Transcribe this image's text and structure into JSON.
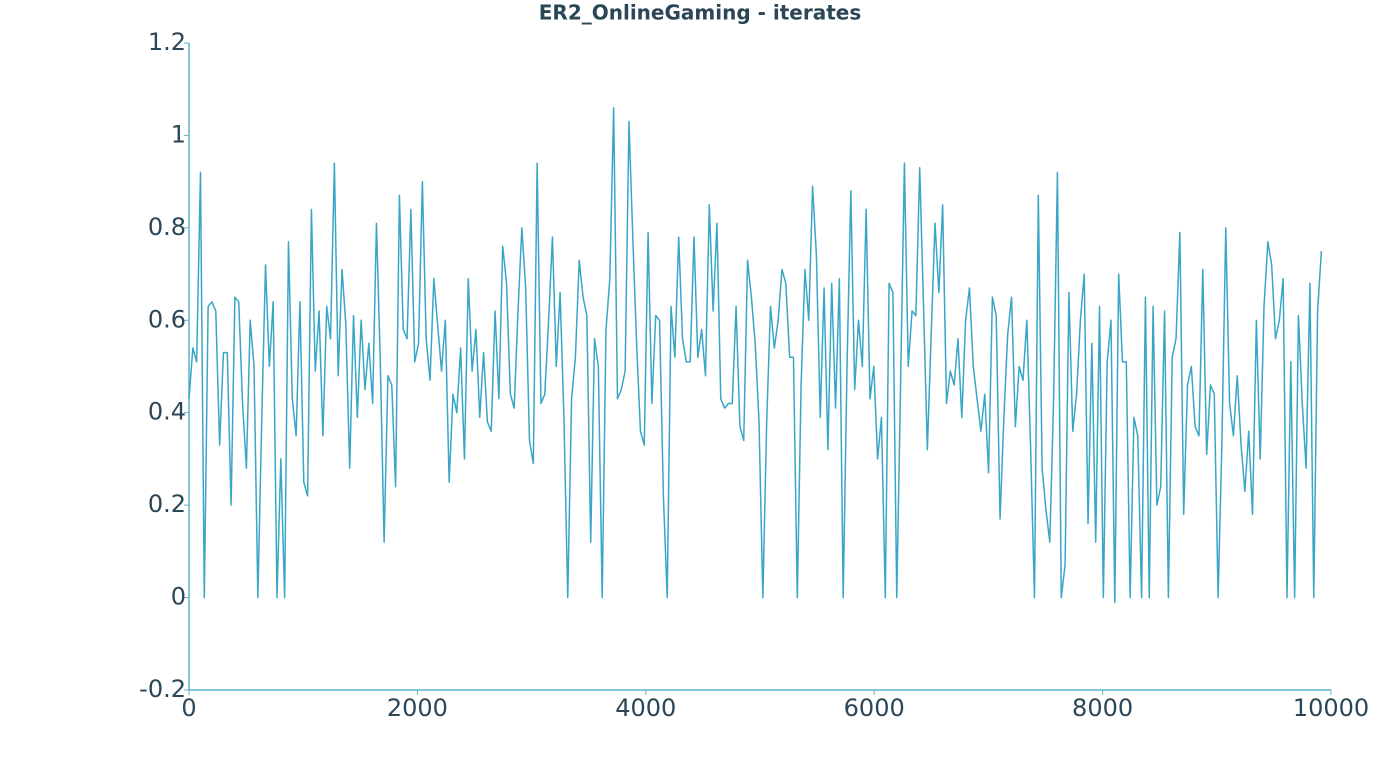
{
  "chart_data": {
    "type": "line",
    "title": "ER2_OnlineGaming - iterates",
    "color": "#3aa6c6",
    "axis_color": "#5ab4cc",
    "grid": false,
    "xlim": [
      0,
      10000
    ],
    "xticks": [
      0,
      2000,
      4000,
      6000,
      8000,
      10000
    ],
    "ylim": [
      -0.2,
      1.2
    ],
    "yticks": [
      -0.2,
      0,
      0.2,
      0.4,
      0.6,
      0.8,
      1,
      1.2
    ],
    "x": [
      0,
      33.5,
      67,
      100.5,
      134,
      167.5,
      201,
      234.5,
      268,
      301.5,
      335,
      368.5,
      402,
      435.5,
      469,
      502.5,
      536,
      569.5,
      603,
      636.5,
      670,
      703.5,
      737,
      770.5,
      804,
      837.5,
      871,
      904.5,
      938,
      971.5,
      1005,
      1038.5,
      1072,
      1105.5,
      1139,
      1172.5,
      1206,
      1239.5,
      1273,
      1306.5,
      1340,
      1373.5,
      1407,
      1440.5,
      1474,
      1507.5,
      1541,
      1574.5,
      1608,
      1641.5,
      1675,
      1708.5,
      1742,
      1775.5,
      1809,
      1842.5,
      1876,
      1909.5,
      1943,
      1976.5,
      2010,
      2043.5,
      2077,
      2110.5,
      2144,
      2177.5,
      2211,
      2244.5,
      2278,
      2311.5,
      2345,
      2378.5,
      2412,
      2445.5,
      2479,
      2512.5,
      2546,
      2579.5,
      2613,
      2646.5,
      2680,
      2713.5,
      2747,
      2780.5,
      2814,
      2847.5,
      2881,
      2914.5,
      2948,
      2981.5,
      3015,
      3048.5,
      3082,
      3115.5,
      3149,
      3182.5,
      3216,
      3249.5,
      3283,
      3316.5,
      3350,
      3383.5,
      3417,
      3450.5,
      3484,
      3517.5,
      3551,
      3584.5,
      3618,
      3651.5,
      3685,
      3718.5,
      3752,
      3785.5,
      3819,
      3852.5,
      3886,
      3919.5,
      3953,
      3986.5,
      4020,
      4053.5,
      4087,
      4120.5,
      4154,
      4187.5,
      4221,
      4254.5,
      4288,
      4321.5,
      4355,
      4388.5,
      4422,
      4455.5,
      4489,
      4522.5,
      4556,
      4589.5,
      4623,
      4656.5,
      4690,
      4723.5,
      4757,
      4790.5,
      4824,
      4857.5,
      4891,
      4924.5,
      4958,
      4991.5,
      5025,
      5058.5,
      5092,
      5125.5,
      5159,
      5192.5,
      5226,
      5259.5,
      5293,
      5326.5,
      5360,
      5393.5,
      5427,
      5460.5,
      5494,
      5527.5,
      5561,
      5594.5,
      5628,
      5661.5,
      5695,
      5728.5,
      5762,
      5795.5,
      5829,
      5862.5,
      5896,
      5929.5,
      5963,
      5996.5,
      6030,
      6063.5,
      6097,
      6130.5,
      6164,
      6197.5,
      6231,
      6264.5,
      6298,
      6331.5,
      6365,
      6398.5,
      6432,
      6465.5,
      6499,
      6532.5,
      6566,
      6599.5,
      6633,
      6666.5,
      6700,
      6733.5,
      6767,
      6800.5,
      6834,
      6867.5,
      6901,
      6934.5,
      6968,
      7001.5,
      7035,
      7068.5,
      7102,
      7135.5,
      7169,
      7202.5,
      7236,
      7269.5,
      7303,
      7336.5,
      7370,
      7403.5,
      7437,
      7470.5,
      7504,
      7537.5,
      7571,
      7604.5,
      7638,
      7671.5,
      7705,
      7738.5,
      7772,
      7805.5,
      7839,
      7872.5,
      7906,
      7939.5,
      7973,
      8006.5,
      8040,
      8073.5,
      8107,
      8140.5,
      8174,
      8207.5,
      8241,
      8274.5,
      8308,
      8341.5,
      8375,
      8408.5,
      8442,
      8475.5,
      8509,
      8542.5,
      8576,
      8609.5,
      8643,
      8676.5,
      8710,
      8743.5,
      8777,
      8810.5,
      8844,
      8877.5,
      8911,
      8944.5,
      8978,
      9011.5,
      9045,
      9078.5,
      9112,
      9145.5,
      9179,
      9212.5,
      9246,
      9279.5,
      9313,
      9346.5,
      9380,
      9413.5,
      9447,
      9480.5,
      9514,
      9547.5,
      9581,
      9614.5,
      9648,
      9681.5,
      9715,
      9748.5,
      9782,
      9815.5,
      9849,
      9882.5,
      9916
    ],
    "values": [
      0.43,
      0.54,
      0.51,
      0.92,
      0.0,
      0.63,
      0.64,
      0.62,
      0.33,
      0.53,
      0.53,
      0.2,
      0.65,
      0.64,
      0.42,
      0.28,
      0.6,
      0.5,
      0.0,
      0.38,
      0.72,
      0.5,
      0.64,
      0.0,
      0.3,
      0.0,
      0.77,
      0.43,
      0.35,
      0.64,
      0.25,
      0.22,
      0.84,
      0.49,
      0.62,
      0.35,
      0.63,
      0.56,
      0.94,
      0.48,
      0.71,
      0.59,
      0.28,
      0.61,
      0.39,
      0.6,
      0.45,
      0.55,
      0.42,
      0.81,
      0.51,
      0.12,
      0.48,
      0.46,
      0.24,
      0.87,
      0.58,
      0.56,
      0.84,
      0.51,
      0.55,
      0.9,
      0.56,
      0.47,
      0.69,
      0.59,
      0.49,
      0.6,
      0.25,
      0.44,
      0.4,
      0.54,
      0.3,
      0.69,
      0.49,
      0.58,
      0.39,
      0.53,
      0.38,
      0.36,
      0.62,
      0.43,
      0.76,
      0.68,
      0.44,
      0.41,
      0.62,
      0.8,
      0.67,
      0.34,
      0.29,
      0.94,
      0.42,
      0.44,
      0.6,
      0.78,
      0.5,
      0.66,
      0.39,
      0.0,
      0.43,
      0.52,
      0.73,
      0.65,
      0.61,
      0.12,
      0.56,
      0.5,
      0.0,
      0.58,
      0.69,
      1.06,
      0.43,
      0.45,
      0.49,
      1.03,
      0.78,
      0.55,
      0.36,
      0.33,
      0.79,
      0.42,
      0.61,
      0.6,
      0.22,
      0.0,
      0.63,
      0.52,
      0.78,
      0.56,
      0.51,
      0.51,
      0.78,
      0.52,
      0.58,
      0.48,
      0.85,
      0.62,
      0.81,
      0.43,
      0.41,
      0.42,
      0.42,
      0.63,
      0.37,
      0.34,
      0.73,
      0.65,
      0.55,
      0.38,
      0.0,
      0.38,
      0.63,
      0.54,
      0.6,
      0.71,
      0.68,
      0.52,
      0.52,
      0.0,
      0.46,
      0.71,
      0.6,
      0.89,
      0.74,
      0.39,
      0.67,
      0.32,
      0.68,
      0.41,
      0.69,
      0.0,
      0.5,
      0.88,
      0.45,
      0.6,
      0.5,
      0.84,
      0.43,
      0.5,
      0.3,
      0.39,
      0.0,
      0.68,
      0.66,
      0.0,
      0.46,
      0.94,
      0.5,
      0.62,
      0.61,
      0.93,
      0.63,
      0.32,
      0.57,
      0.81,
      0.66,
      0.85,
      0.42,
      0.49,
      0.46,
      0.56,
      0.39,
      0.6,
      0.67,
      0.5,
      0.43,
      0.36,
      0.44,
      0.27,
      0.65,
      0.61,
      0.17,
      0.39,
      0.57,
      0.65,
      0.37,
      0.5,
      0.47,
      0.6,
      0.32,
      0.0,
      0.87,
      0.28,
      0.19,
      0.12,
      0.43,
      0.92,
      0.0,
      0.07,
      0.66,
      0.36,
      0.44,
      0.6,
      0.7,
      0.16,
      0.55,
      0.12,
      0.63,
      0.0,
      0.51,
      0.6,
      -0.01,
      0.7,
      0.51,
      0.51,
      0.0,
      0.39,
      0.35,
      0.0,
      0.65,
      0.0,
      0.63,
      0.2,
      0.24,
      0.62,
      0.0,
      0.52,
      0.56,
      0.79,
      0.18,
      0.46,
      0.5,
      0.37,
      0.35,
      0.71,
      0.31,
      0.46,
      0.44,
      0.0,
      0.34,
      0.8,
      0.42,
      0.35,
      0.48,
      0.33,
      0.23,
      0.36,
      0.18,
      0.6,
      0.3,
      0.63,
      0.77,
      0.72,
      0.56,
      0.6,
      0.69,
      0.0,
      0.51,
      0.0,
      0.61,
      0.42,
      0.28,
      0.68,
      0.0,
      0.62,
      0.75
    ]
  }
}
